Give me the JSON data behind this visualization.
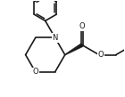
{
  "bg_color": "#ffffff",
  "line_color": "#1a1a1a",
  "lw": 1.2,
  "fig_width": 1.4,
  "fig_height": 1.09,
  "dpi": 100,
  "xlim": [
    0,
    10.0
  ],
  "ylim": [
    0,
    7.8
  ]
}
